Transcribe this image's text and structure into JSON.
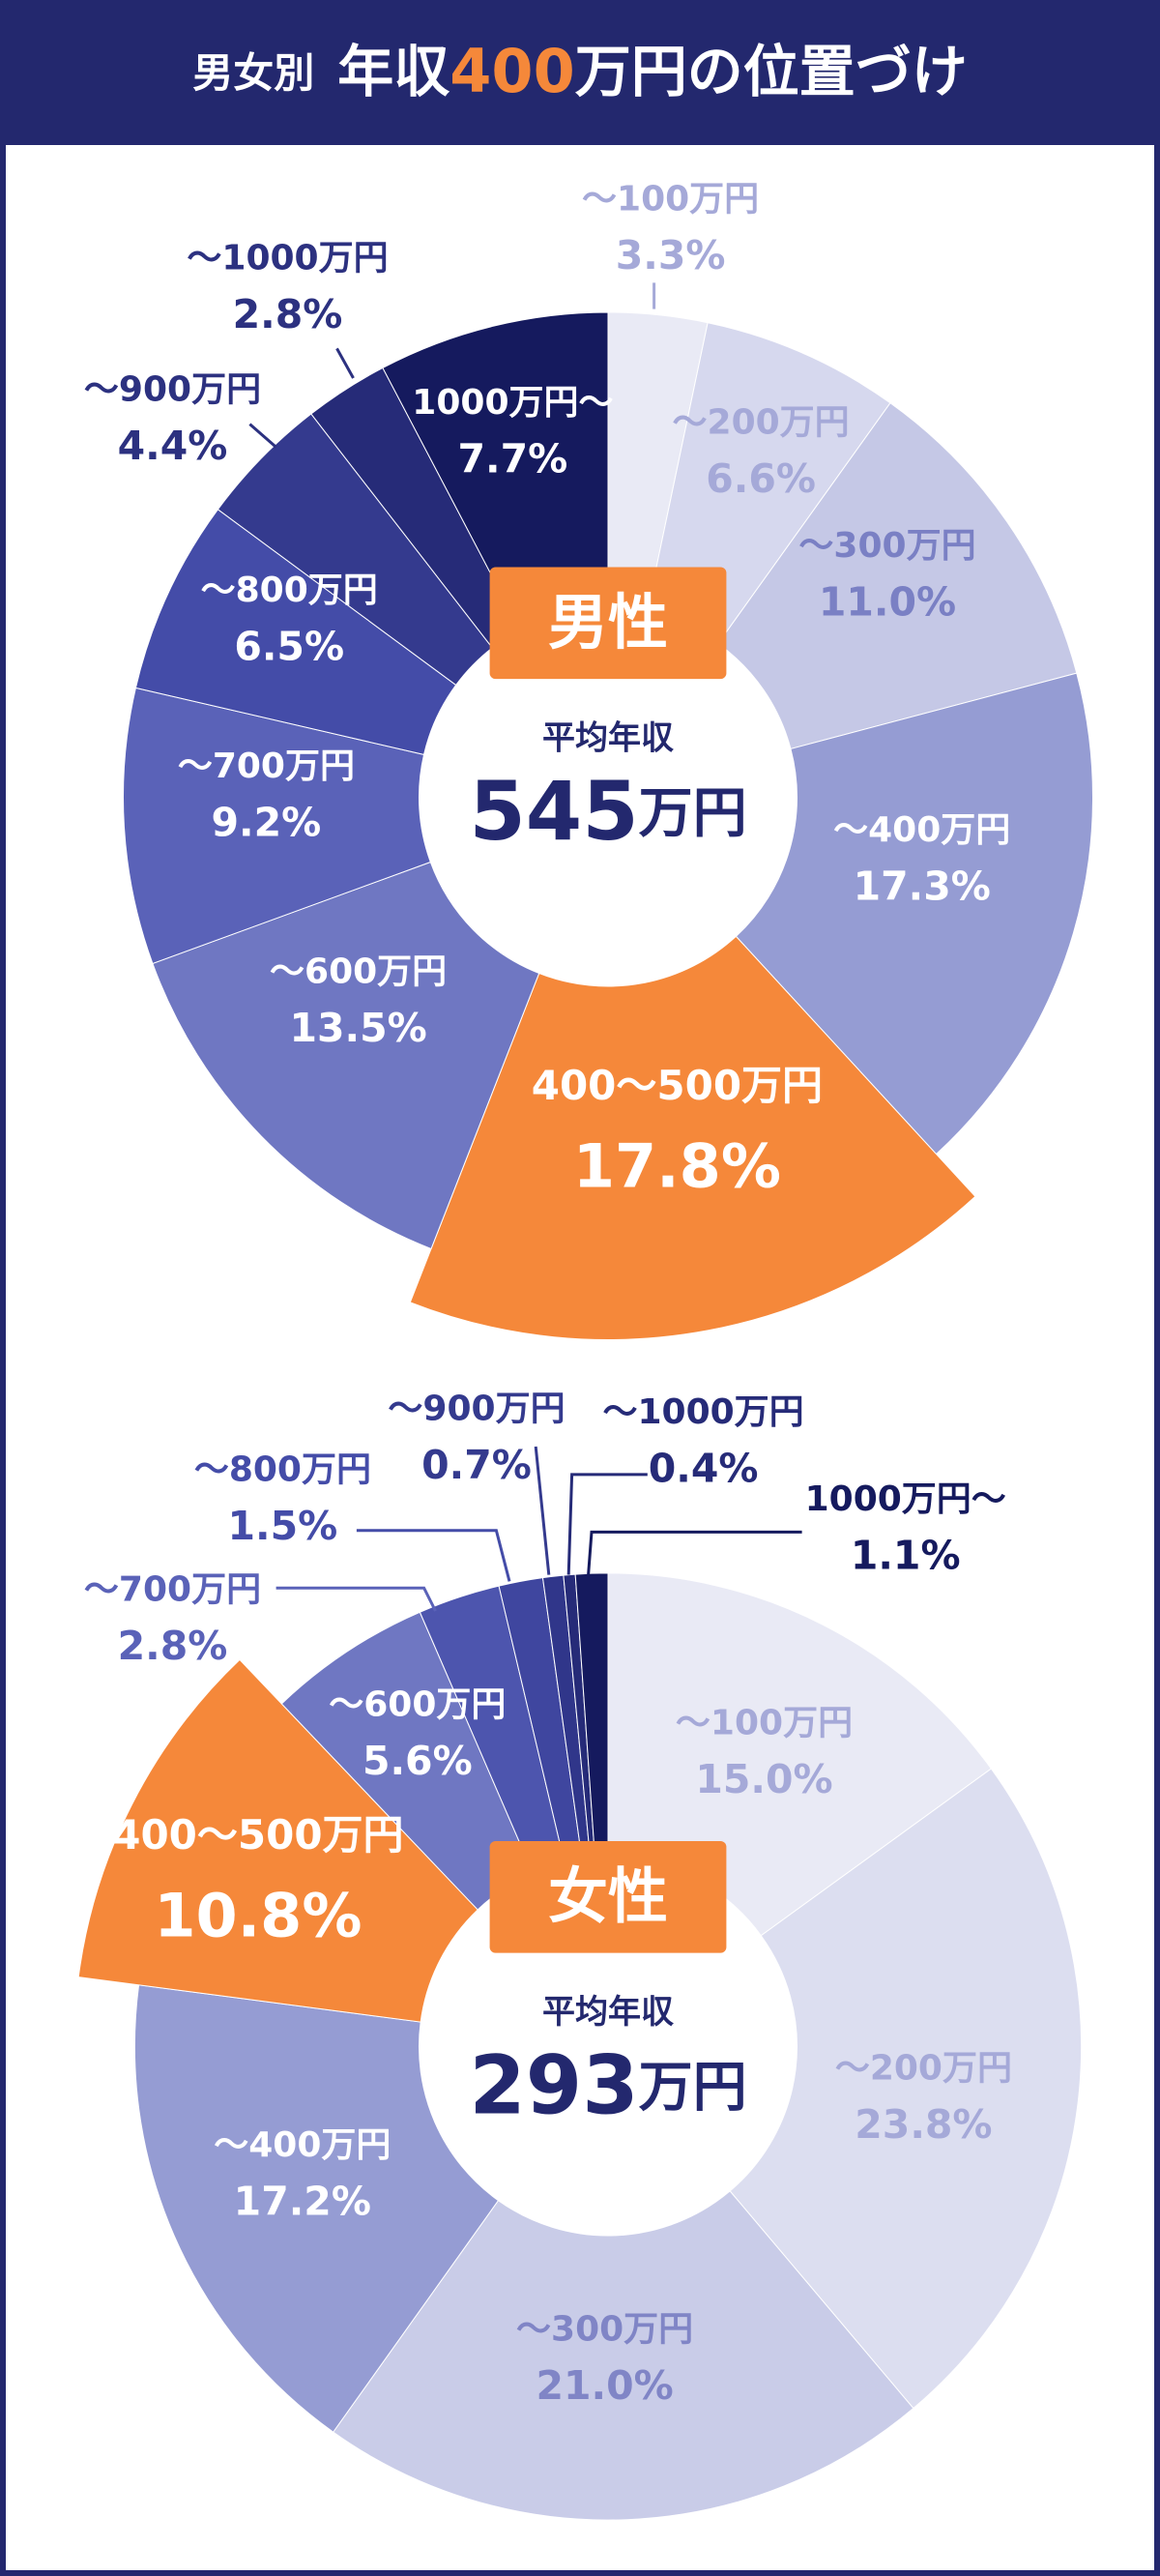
{
  "header": {
    "title_parts": [
      "男女別",
      "年収",
      "400",
      "万円の位置づけ"
    ]
  },
  "chart_data": [
    {
      "type": "pie",
      "center_badge": "男性",
      "center_label": "平均年収",
      "average": 545,
      "average_unit": "万円",
      "highlight": 4,
      "categories": [
        "～100万円",
        "～200万円",
        "～300万円",
        "～400万円",
        "400～500万円",
        "～600万円",
        "～700万円",
        "～800万円",
        "～900万円",
        "～1000万円",
        "1000万円～"
      ],
      "values": [
        3.3,
        6.6,
        11.0,
        17.3,
        17.8,
        13.5,
        9.2,
        6.5,
        4.4,
        2.8,
        7.7
      ],
      "value_labels": [
        "3.3%",
        "6.6%",
        "11.0%",
        "17.3%",
        "17.8%",
        "13.5%",
        "9.2%",
        "6.5%",
        "4.4%",
        "2.8%",
        "7.7%"
      ],
      "colors": [
        "#e9eaf5",
        "#d6d8ee",
        "#c5c8e6",
        "#959cd3",
        "#f5883a",
        "#6f77c2",
        "#5a62b8",
        "#444ca8",
        "#343a8e",
        "#262b78",
        "#151a5e"
      ]
    },
    {
      "type": "pie",
      "center_badge": "女性",
      "center_label": "平均年収",
      "average": 293,
      "average_unit": "万円",
      "highlight": 4,
      "categories": [
        "～100万円",
        "～200万円",
        "～300万円",
        "～400万円",
        "400～500万円",
        "～600万円",
        "～700万円",
        "～800万円",
        "～900万円",
        "～1000万円",
        "1000万円～"
      ],
      "values": [
        15.0,
        23.8,
        21.0,
        17.2,
        10.8,
        5.6,
        2.8,
        1.5,
        0.7,
        0.4,
        1.1
      ],
      "value_labels": [
        "15.0%",
        "23.8%",
        "21.0%",
        "17.2%",
        "10.8%",
        "5.6%",
        "2.8%",
        "1.5%",
        "0.7%",
        "0.4%",
        "1.1%"
      ],
      "colors": [
        "#e9eaf5",
        "#dcdef0",
        "#c9cce8",
        "#959cd3",
        "#f5883a",
        "#6f77c2",
        "#4d55ae",
        "#3f469f",
        "#30368a",
        "#262b78",
        "#151a5e"
      ]
    }
  ]
}
